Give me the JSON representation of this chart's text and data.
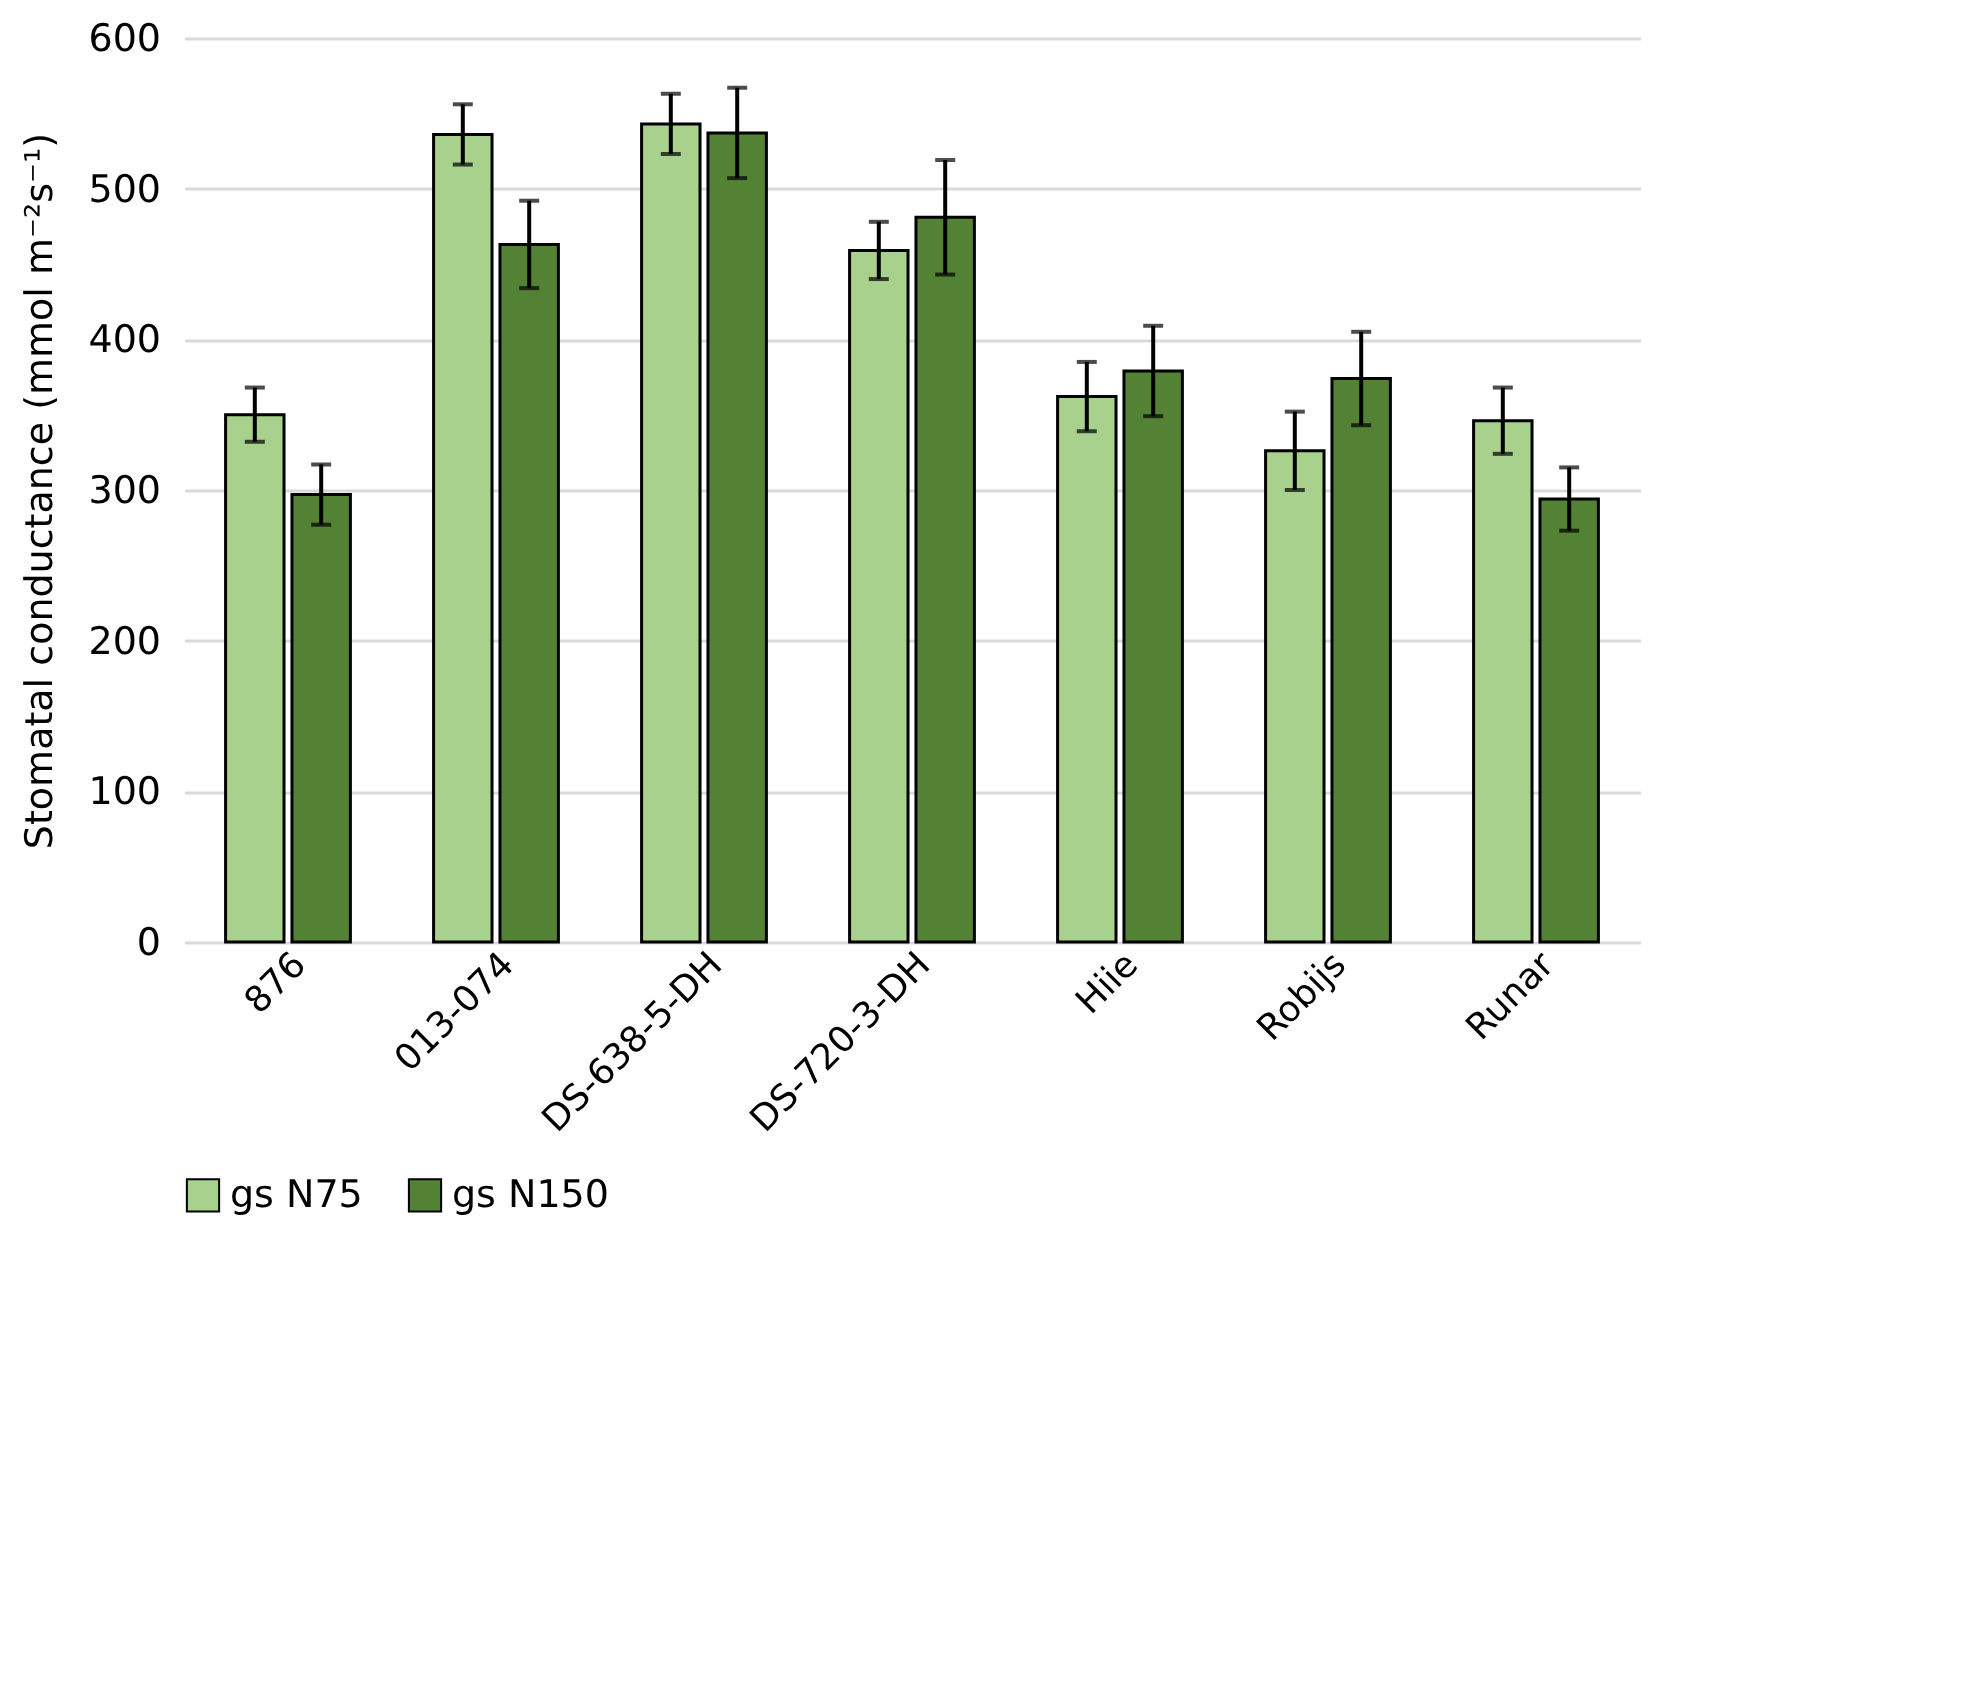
{
  "chart_data": {
    "type": "bar",
    "ylabel": "Stomatal conductance (mmol m⁻²s⁻¹)",
    "categories": [
      "876",
      "013-074",
      "DS-638-5-DH",
      "DS-720-3-DH",
      "Hiie",
      "Robijs",
      "Runar"
    ],
    "series": [
      {
        "name": "gs N75",
        "color": "#a9d18e",
        "values": [
          350,
          536,
          543,
          459,
          362,
          326,
          346
        ],
        "errors": [
          18,
          20,
          20,
          19,
          23,
          26,
          22
        ]
      },
      {
        "name": "gs N150",
        "color": "#548235",
        "values": [
          297,
          463,
          537,
          481,
          379,
          374,
          294
        ],
        "errors": [
          20,
          29,
          30,
          38,
          30,
          31,
          21
        ]
      }
    ],
    "ylim": [
      0,
      600
    ],
    "yticks": [
      0,
      100,
      200,
      300,
      400,
      500,
      600
    ],
    "grid": "y",
    "legend": "bottom"
  }
}
